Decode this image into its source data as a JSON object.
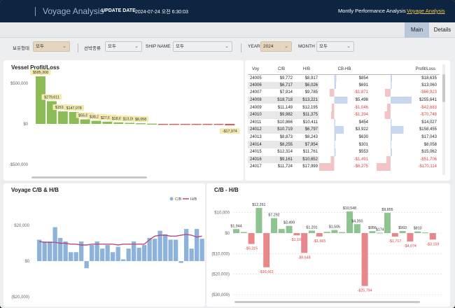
{
  "header": {
    "title": "Voyage Analysis",
    "update_label": "UPDATE DATE",
    "update_value": "2024-07-24 오전 6:30:03",
    "nav_performance": "Montly Performance Analysis",
    "nav_voyage": "Voyage Analysis"
  },
  "tabs": {
    "main": "Main",
    "details": "Details"
  },
  "filters": {
    "ownership_label": "보유형태",
    "ownership_value": "모두",
    "shiptype_label": "선박종류",
    "shiptype_value": "모두",
    "shipname_label": "SHIP NAME",
    "shipname_value": "모두",
    "year_label": "YEAR",
    "year_value": "2024",
    "month_label": "MONTH",
    "month_value": "모두"
  },
  "icons": {
    "dropdown": "chevron-down-icon"
  },
  "colors": {
    "green": "#8dbb57",
    "red": "#e8878a",
    "blue": "#8db3dc",
    "line": "#b34d80",
    "header": "#0e2541",
    "accent": "#f2c94c"
  },
  "table": {
    "headers": [
      "Voy",
      "C/B",
      "H/B",
      "CB-HB",
      "Profit/Loss"
    ],
    "rows": [
      {
        "voy": "24005",
        "cb": "$9,772",
        "hb": "$8,917",
        "diff": "$854",
        "pl": "$18,635",
        "neg_diff": false,
        "neg_pl": false
      },
      {
        "voy": "24006",
        "cb": "$6,717",
        "hb": "$6,026",
        "diff": "$691",
        "pl": "$13,060",
        "neg_diff": false,
        "neg_pl": false
      },
      {
        "voy": "24007",
        "cb": "$7,914",
        "hb": "$9,785",
        "diff": "-$1,871",
        "pl": "-$66,923",
        "neg_diff": true,
        "neg_pl": true
      },
      {
        "voy": "24008",
        "cb": "$18,718",
        "hb": "$13,221",
        "diff": "$5,498",
        "pl": "$255,641",
        "neg_diff": false,
        "neg_pl": false
      },
      {
        "voy": "24009",
        "cb": "$11,149",
        "hb": "$12,195",
        "diff": "-$1,046",
        "pl": "-$42,683",
        "neg_diff": true,
        "neg_pl": true
      },
      {
        "voy": "24010",
        "cb": "$9,982",
        "hb": "$11,375",
        "diff": "-$1,394",
        "pl": "-$70,748",
        "neg_diff": true,
        "neg_pl": true
      },
      {
        "voy": "24011",
        "cb": "$10,866",
        "hb": "$10,411",
        "diff": "$454",
        "pl": "$14,027",
        "neg_diff": false,
        "neg_pl": false
      },
      {
        "voy": "24012",
        "cb": "$10,719",
        "hb": "$6,797",
        "diff": "$3,922",
        "pl": "$158,455",
        "neg_diff": false,
        "neg_pl": false
      },
      {
        "voy": "24013",
        "cb": "$8,873",
        "hb": "$8,243",
        "diff": "$630",
        "pl": "$17,043",
        "neg_diff": false,
        "neg_pl": false
      },
      {
        "voy": "24014",
        "cb": "$8,255",
        "hb": "$7,954",
        "diff": "$301",
        "pl": "$8,058",
        "neg_diff": false,
        "neg_pl": false
      },
      {
        "voy": "24015",
        "cb": "$12,314",
        "hb": "$11,761",
        "diff": "$553",
        "pl": "$15,062",
        "neg_diff": false,
        "neg_pl": false
      },
      {
        "voy": "24016",
        "cb": "$9,161",
        "hb": "$10,652",
        "diff": "-$1,491",
        "pl": "-$51,706",
        "neg_diff": true,
        "neg_pl": true
      },
      {
        "voy": "24017",
        "cb": "$11,724",
        "hb": "$17,999",
        "diff": "-$6,275",
        "pl": "-$170,114",
        "neg_diff": true,
        "neg_pl": true
      }
    ]
  },
  "chart_data": [
    {
      "type": "bar",
      "title": "Vessel Profit/Loss",
      "yticks": [
        "$500,000",
        "$0",
        "-$500,000"
      ],
      "ylim": [
        -650000,
        650000
      ],
      "values": [
        585308,
        279611,
        153988,
        147078,
        55891,
        38219,
        27668,
        18635,
        13060,
        8058,
        3000,
        -2000,
        -4000,
        -6000,
        -8000,
        -10000,
        -12000,
        -17974
      ],
      "labels": [
        "$585,308",
        "$279,611",
        "$153,988",
        "$147,078",
        "$55,891",
        "$38,219",
        "$27,668",
        "$18,635",
        "$13,060",
        "$8,058",
        "",
        "",
        "",
        "",
        "",
        "",
        "",
        "-$17,974"
      ],
      "colors": {
        "positive": "#8dbb57",
        "negative": "#e35a5a"
      }
    },
    {
      "type": "bar",
      "title": "Voyage C/B & H/B",
      "legend": [
        "C/B",
        "H/B"
      ],
      "yticks": [
        "$20,000",
        "$0",
        "($20,000)"
      ],
      "ylim": [
        -20000,
        30000
      ],
      "series": [
        {
          "name": "C/B",
          "type": "bar",
          "values": [
            12000,
            11000,
            11000,
            19000,
            13000,
            11000,
            5000,
            5000,
            11000,
            -4000,
            9000,
            11000,
            7000,
            9000,
            5000,
            8000,
            1000,
            7000,
            11000,
            7500,
            9000,
            13000,
            12500,
            17000,
            15000,
            12000,
            12000,
            -1000,
            18000,
            7000,
            18000,
            12500
          ]
        },
        {
          "name": "H/B",
          "type": "line",
          "values": [
            11000,
            10500,
            10500,
            10500,
            10000,
            10000,
            9500,
            9500,
            9000,
            9000,
            9500,
            9500,
            9500,
            9500,
            9500,
            9000,
            9500,
            9500,
            9500,
            9500,
            9500,
            12000,
            14000,
            14500,
            14500,
            14000,
            14000,
            14500,
            15000,
            14500,
            13500,
            14000
          ]
        }
      ]
    },
    {
      "type": "bar",
      "title": "C/B - H/B",
      "yticks": [
        "$10,000",
        "$0",
        "($10,000)",
        "($20,000)",
        "($30,000)"
      ],
      "ylim": [
        -31000,
        14000
      ],
      "values": [
        1944,
        500,
        -5315,
        12261,
        -16661,
        7292,
        2000,
        3499,
        -1108,
        -9648,
        1201,
        -1665,
        600,
        1505,
        500,
        10548,
        4350,
        -25794,
        956,
        174,
        9855,
        -1717,
        993,
        -4074,
        810,
        300,
        -3159
      ],
      "labels": [
        "$1,944",
        "",
        "-$5,315",
        "$12,261",
        "-$16,661",
        "$7,292",
        "",
        "$3,499",
        "-$1,108",
        "-$9,648",
        "$1,201",
        "-$1,665",
        "",
        "$1,505",
        "",
        "$10,548",
        "$4,350",
        "-$25,794",
        "$956",
        "$174",
        "$9,855",
        "-$1,717",
        "$993",
        "-$4,074",
        "$810",
        "",
        "-$3,159"
      ],
      "colors": {
        "positive": "#8dc48f",
        "negative": "#e8878a"
      }
    }
  ]
}
